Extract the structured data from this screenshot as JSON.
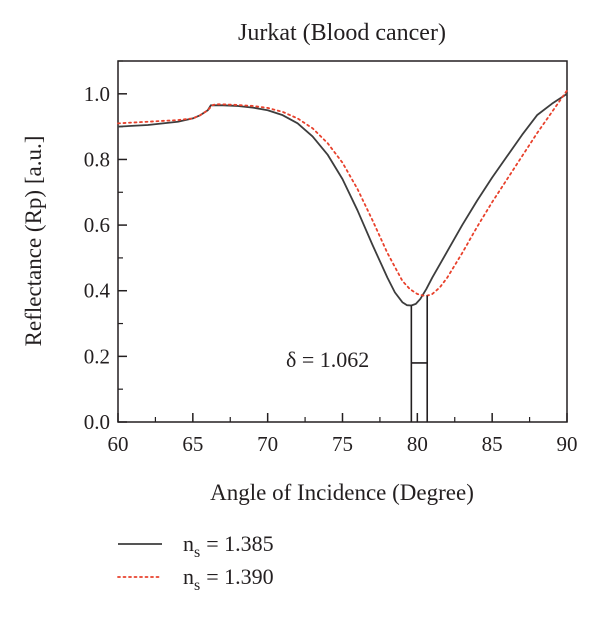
{
  "chart_data": {
    "type": "line",
    "title": "Jurkat (Blood cancer)",
    "xlabel": "Angle of Incidence (Degree)",
    "ylabel": "Reflectance (Rp) [a.u.]",
    "xlim": [
      60,
      90
    ],
    "ylim": [
      0.0,
      1.1
    ],
    "xticks": [
      "60",
      "65",
      "70",
      "75",
      "80",
      "85",
      "90"
    ],
    "yticks": [
      "0.0",
      "0.2",
      "0.4",
      "0.6",
      "0.8",
      "1.0"
    ],
    "grid": false,
    "legend_position": "below",
    "annotation": "δ = 1.062",
    "resonance_angles": [
      79.6,
      80.66
    ],
    "series": [
      {
        "name": "n",
        "name_subscript": "s",
        "value_label": "= 1.385",
        "style": "solid",
        "color": "#3d3d3d",
        "x": [
          60,
          62,
          64,
          65,
          65.5,
          66,
          66.2,
          67,
          68,
          69,
          70,
          71,
          72,
          73,
          74,
          75,
          76,
          77,
          78,
          78.5,
          79,
          79.3,
          79.6,
          79.9,
          80.2,
          80.6,
          81,
          82,
          83,
          84,
          85,
          86,
          87,
          88,
          89,
          90
        ],
        "y": [
          0.9,
          0.905,
          0.915,
          0.925,
          0.935,
          0.95,
          0.965,
          0.965,
          0.963,
          0.958,
          0.95,
          0.935,
          0.91,
          0.87,
          0.815,
          0.74,
          0.645,
          0.54,
          0.44,
          0.395,
          0.365,
          0.356,
          0.355,
          0.36,
          0.375,
          0.405,
          0.44,
          0.52,
          0.6,
          0.675,
          0.745,
          0.81,
          0.875,
          0.935,
          0.97,
          1.0
        ]
      },
      {
        "name": "n",
        "name_subscript": "s",
        "value_label": "= 1.390",
        "style": "dotted",
        "color": "#e8412c",
        "x": [
          60,
          62,
          64,
          65,
          65.5,
          66,
          66.3,
          66.5,
          67,
          68,
          69,
          70,
          71,
          72,
          73,
          74,
          75,
          76,
          77,
          78,
          79,
          79.5,
          80,
          80.4,
          80.66,
          81,
          81.5,
          82,
          83,
          84,
          85,
          86,
          87,
          88,
          89,
          90
        ],
        "y": [
          0.91,
          0.915,
          0.92,
          0.925,
          0.935,
          0.95,
          0.965,
          0.968,
          0.968,
          0.966,
          0.963,
          0.957,
          0.945,
          0.925,
          0.895,
          0.85,
          0.79,
          0.71,
          0.615,
          0.515,
          0.43,
          0.405,
          0.39,
          0.385,
          0.385,
          0.39,
          0.41,
          0.44,
          0.515,
          0.595,
          0.67,
          0.74,
          0.81,
          0.88,
          0.945,
          1.01
        ]
      }
    ]
  }
}
